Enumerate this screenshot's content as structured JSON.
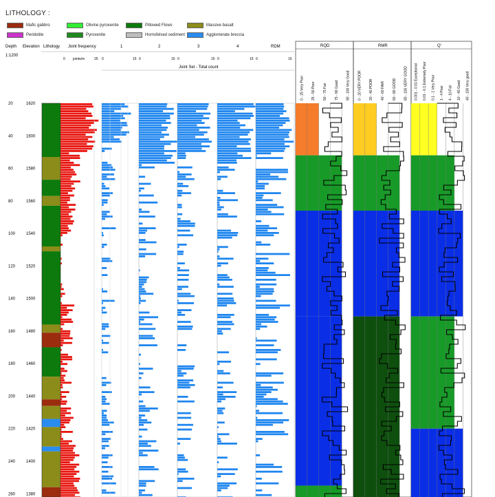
{
  "title": "LITHOLOGY :",
  "legend": [
    {
      "label": "Mafic gabbro",
      "color": "#9b2c0e"
    },
    {
      "label": "Peridotite",
      "color": "#cc33cc"
    },
    {
      "label": "Olivine pyroxenite",
      "color": "#33ee33"
    },
    {
      "label": "Pyroxenite",
      "color": "#1e8a1e"
    },
    {
      "label": "Pillowed Flows",
      "color": "#0c7a0c"
    },
    {
      "label": "Hornsfelsed sediment",
      "color": "#bdbdbd"
    },
    {
      "label": "Massive basalt",
      "color": "#8c8c1a"
    },
    {
      "label": "Agglomerate breccia",
      "color": "#2a8cf0"
    }
  ],
  "headers": {
    "depth": "Depth",
    "elevation": "Elevation",
    "lithology": "Lithology",
    "scale": "1:1200",
    "joint_frequency": "Joint frequency",
    "units": "joints/m",
    "jf_ticks": [
      "0",
      "25"
    ],
    "set_labels": [
      "1",
      "2",
      "3",
      "4",
      "RDM"
    ],
    "set_ticks": [
      "0",
      "15"
    ],
    "joint_set_total": "Joint Set - Total count",
    "rqd": "RQD",
    "rmr": "RMR",
    "q": "Q'"
  },
  "rqd_classes": [
    "0 - 25 Very Poor",
    "25 - 50 Poor",
    "50 - 75 Fair",
    "75 - 90 Good",
    "90 - 100 Very Good"
  ],
  "rmr_classes": [
    "0 - 20 VERY POOR",
    "20 - 40 POOR",
    "40 - 60 FAIR",
    "60 - 80 GOOD",
    "80 - 100 VERY GOOD"
  ],
  "q_classes": [
    "0.001 - 0.01 Exceptional",
    "0.01 - 0.1 Extremely Poor",
    "0.1 - 1 Very Poor",
    "1 - 4 Poor",
    "4 - 10 Fair",
    "10 - 40 Good",
    "40 - 100 Very good"
  ],
  "depth_labels": [
    "20",
    "40",
    "60",
    "80",
    "100",
    "120",
    "140",
    "160",
    "180",
    "200",
    "220",
    "240",
    "260"
  ],
  "elevation_labels": [
    "1620",
    "1600",
    "1580",
    "1560",
    "1540",
    "1520",
    "1500",
    "1480",
    "1460",
    "1440",
    "1420",
    "1400",
    "1380"
  ],
  "lithology_intervals": [
    {
      "from": 20,
      "to": 53,
      "color": "#0c7a0c"
    },
    {
      "from": 53,
      "to": 67,
      "color": "#8c8c1a"
    },
    {
      "from": 67,
      "to": 77,
      "color": "#0c7a0c"
    },
    {
      "from": 77,
      "to": 83,
      "color": "#8c8c1a"
    },
    {
      "from": 83,
      "to": 108,
      "color": "#0c7a0c"
    },
    {
      "from": 108,
      "to": 111,
      "color": "#8c8c1a"
    },
    {
      "from": 111,
      "to": 156,
      "color": "#0c7a0c"
    },
    {
      "from": 156,
      "to": 161,
      "color": "#8c8c1a"
    },
    {
      "from": 161,
      "to": 170,
      "color": "#9b2c0e"
    },
    {
      "from": 170,
      "to": 188,
      "color": "#0c7a0c"
    },
    {
      "from": 188,
      "to": 202,
      "color": "#8c8c1a"
    },
    {
      "from": 202,
      "to": 206,
      "color": "#9b2c0e"
    },
    {
      "from": 206,
      "to": 214,
      "color": "#8c8c1a"
    },
    {
      "from": 214,
      "to": 219,
      "color": "#2a8cf0"
    },
    {
      "from": 219,
      "to": 231,
      "color": "#8c8c1a"
    },
    {
      "from": 231,
      "to": 234,
      "color": "#2a8cf0"
    },
    {
      "from": 234,
      "to": 256,
      "color": "#8c8c1a"
    },
    {
      "from": 256,
      "to": 262,
      "color": "#9b2c0e"
    }
  ],
  "rating_bands": {
    "rqd": [
      {
        "from": 20,
        "to": 52,
        "level": 2,
        "color": "#f57c2a"
      },
      {
        "from": 52,
        "to": 86,
        "level": 4,
        "color": "#189a28"
      },
      {
        "from": 86,
        "to": 151,
        "level": 4,
        "color": "#0a2ee6"
      },
      {
        "from": 151,
        "to": 255,
        "level": 4,
        "color": "#0a2ee6"
      },
      {
        "from": 255,
        "to": 262,
        "level": 4,
        "color": "#189a28"
      }
    ],
    "rmr": [
      {
        "from": 20,
        "to": 52,
        "level": 2,
        "color": "#ffcc22"
      },
      {
        "from": 52,
        "to": 86,
        "level": 4,
        "color": "#189a28"
      },
      {
        "from": 86,
        "to": 151,
        "level": 4,
        "color": "#0a2ee6"
      },
      {
        "from": 151,
        "to": 262,
        "level": 4,
        "color": "#0e4f0e"
      }
    ],
    "q": [
      {
        "from": 20,
        "to": 52,
        "level": 3,
        "color": "#ffff22"
      },
      {
        "from": 52,
        "to": 86,
        "level": 5,
        "color": "#189a28"
      },
      {
        "from": 86,
        "to": 151,
        "level": 6,
        "color": "#0a2ee6"
      },
      {
        "from": 151,
        "to": 220,
        "level": 5,
        "color": "#189a28"
      },
      {
        "from": 220,
        "to": 262,
        "level": 6,
        "color": "#0a2ee6"
      }
    ]
  }
}
